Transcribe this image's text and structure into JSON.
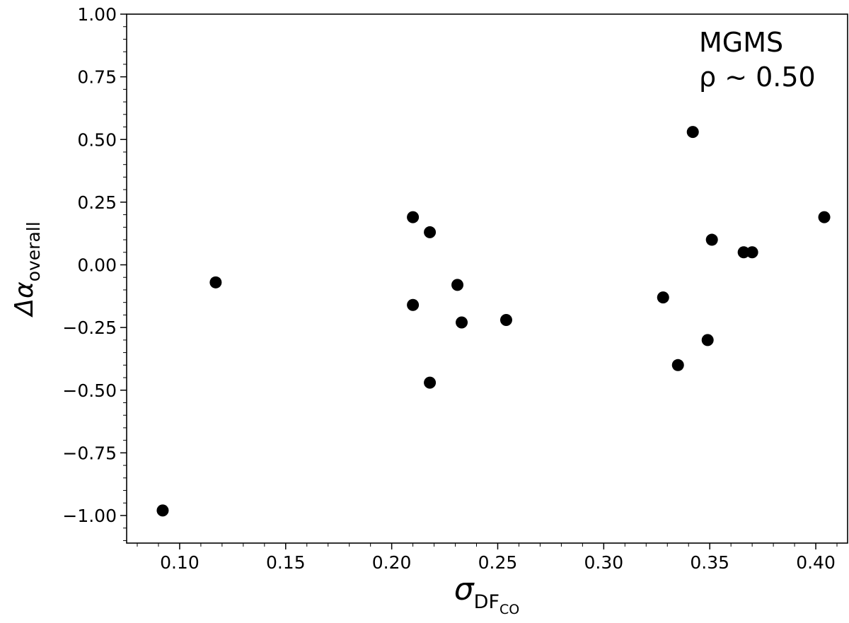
{
  "chart_data": {
    "type": "scatter",
    "xlabel": {
      "symbol": "σ",
      "sub": "DF",
      "subsub": "CO"
    },
    "ylabel": {
      "symbol": "Δα",
      "sub": "overall"
    },
    "xlim": [
      0.075,
      0.415
    ],
    "ylim": [
      -1.11,
      1.0
    ],
    "xticks": [
      "0.10",
      "0.15",
      "0.20",
      "0.25",
      "0.30",
      "0.35",
      "0.40"
    ],
    "yticks": [
      "1.00",
      "0.75",
      "0.50",
      "0.25",
      "0.00",
      "−0.25",
      "−0.50",
      "−0.75",
      "−1.00"
    ],
    "annotations": [
      "MGMS",
      "ρ ~ 0.50"
    ],
    "grid": false,
    "marker_color": "#000000",
    "points": [
      {
        "x": 0.092,
        "y": -0.98
      },
      {
        "x": 0.117,
        "y": -0.07
      },
      {
        "x": 0.21,
        "y": 0.19
      },
      {
        "x": 0.218,
        "y": 0.13
      },
      {
        "x": 0.21,
        "y": -0.16
      },
      {
        "x": 0.218,
        "y": -0.47
      },
      {
        "x": 0.231,
        "y": -0.08
      },
      {
        "x": 0.233,
        "y": -0.23
      },
      {
        "x": 0.254,
        "y": -0.22
      },
      {
        "x": 0.328,
        "y": -0.13
      },
      {
        "x": 0.335,
        "y": -0.4
      },
      {
        "x": 0.342,
        "y": 0.53
      },
      {
        "x": 0.349,
        "y": -0.3
      },
      {
        "x": 0.351,
        "y": 0.1
      },
      {
        "x": 0.366,
        "y": 0.05
      },
      {
        "x": 0.37,
        "y": 0.05
      },
      {
        "x": 0.404,
        "y": 0.19
      }
    ]
  }
}
